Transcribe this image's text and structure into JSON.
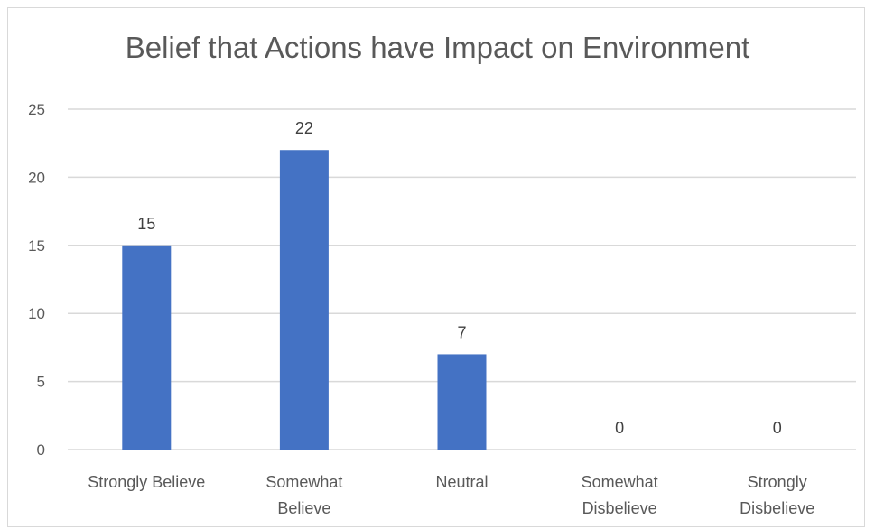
{
  "chart_data": {
    "type": "bar",
    "title": "Belief that Actions have Impact on Environment",
    "categories": [
      "Strongly Believe",
      "Somewhat Believe",
      "Neutral",
      "Somewhat Disbelieve",
      "Strongly Disbelieve"
    ],
    "category_lines": [
      [
        "Strongly Believe"
      ],
      [
        "Somewhat",
        "Believe"
      ],
      [
        "Neutral"
      ],
      [
        "Somewhat",
        "Disbelieve"
      ],
      [
        "Strongly",
        "Disbelieve"
      ]
    ],
    "values": [
      15,
      22,
      7,
      0,
      0
    ],
    "xlabel": "",
    "ylabel": "",
    "ylim": [
      0,
      25
    ],
    "yticks": [
      0,
      5,
      10,
      15,
      20,
      25
    ],
    "grid": true,
    "legend": "none",
    "bar_color": "#4472c4",
    "grid_color": "#d9d9d9"
  }
}
